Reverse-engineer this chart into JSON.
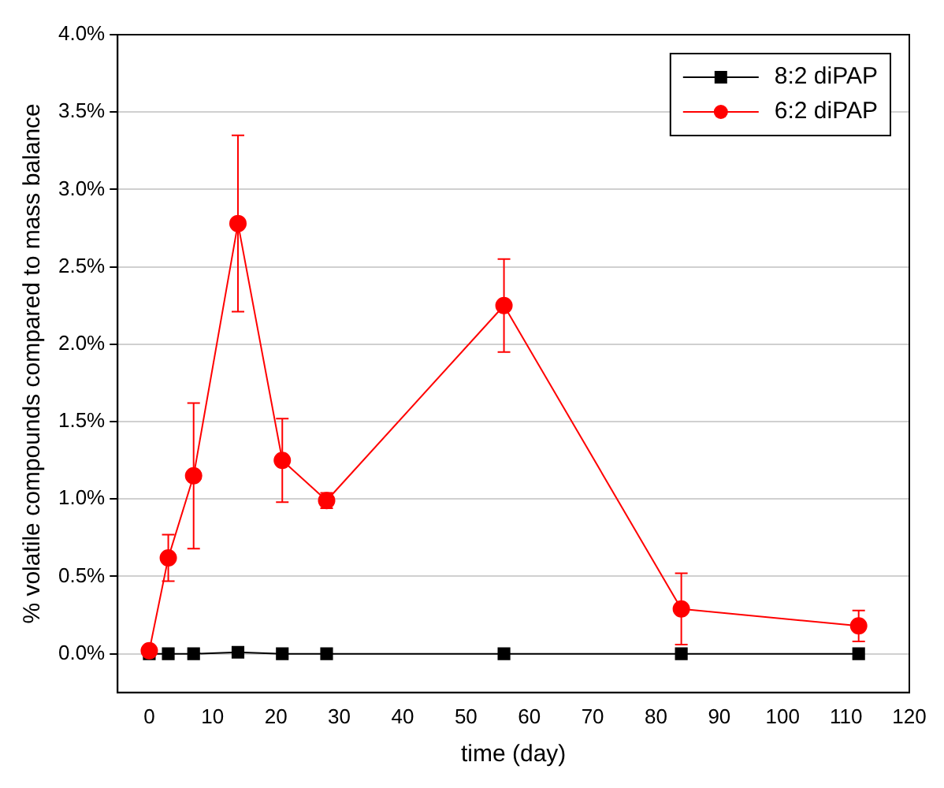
{
  "chart_data": {
    "type": "line",
    "xlabel": "time (day)",
    "ylabel": "% volatile compounds compared to mass balance",
    "x": [
      0,
      3,
      7,
      14,
      21,
      28,
      56,
      84,
      112
    ],
    "series": [
      {
        "name": "8:2 diPAP",
        "color": "#000000",
        "marker": "square",
        "values": [
          0,
          0,
          0,
          0.01,
          0,
          0,
          0,
          0,
          0
        ]
      },
      {
        "name": "6:2 diPAP",
        "color": "#ff0000",
        "marker": "circle",
        "values": [
          0.02,
          0.62,
          1.15,
          2.78,
          1.25,
          0.99,
          2.25,
          0.29,
          0.18
        ],
        "errors": [
          null,
          0.15,
          0.47,
          0.57,
          0.27,
          0.05,
          0.3,
          0.23,
          0.1
        ]
      }
    ],
    "xlim": [
      -5,
      120
    ],
    "xticks": [
      0,
      10,
      20,
      30,
      40,
      50,
      60,
      70,
      80,
      90,
      100,
      110,
      120
    ],
    "ylim": [
      -0.25,
      4
    ],
    "yticks": [
      {
        "value": 0,
        "label": "0.0%"
      },
      {
        "value": 0.5,
        "label": "0.5%"
      },
      {
        "value": 1,
        "label": "1.0%"
      },
      {
        "value": 1.5,
        "label": "1.5%"
      },
      {
        "value": 2,
        "label": "2.0%"
      },
      {
        "value": 2.5,
        "label": "2.5%"
      },
      {
        "value": 3,
        "label": "3.0%"
      },
      {
        "value": 3.5,
        "label": "3.5%"
      },
      {
        "value": 4,
        "label": "4.0%"
      }
    ],
    "grid": "y",
    "legend": "top right",
    "line_style": "solid"
  }
}
